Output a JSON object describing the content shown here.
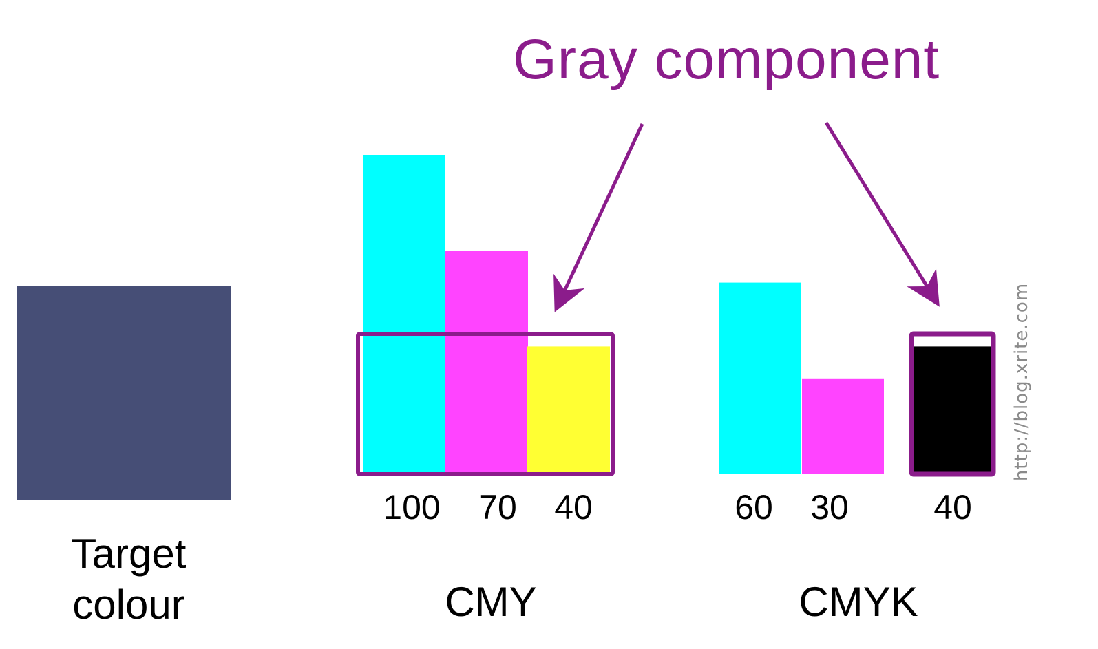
{
  "title": "Gray component",
  "target": {
    "label_line1": "Target",
    "label_line2": "colour",
    "color": "#464e76"
  },
  "colors": {
    "cyan": "#00ffff",
    "magenta": "#ff44ff",
    "yellow": "#ffff33",
    "black": "#000000",
    "highlight": "#8b1c8b"
  },
  "chart_data": [
    {
      "type": "bar",
      "name": "CMY",
      "categories": [
        "C",
        "M",
        "Y"
      ],
      "values": [
        100,
        70,
        40
      ],
      "value_labels": [
        "100",
        "70",
        "40"
      ],
      "highlighted_gray_component": 40,
      "ylim": [
        0,
        100
      ]
    },
    {
      "type": "bar",
      "name": "CMYK",
      "categories": [
        "C",
        "M",
        "K"
      ],
      "values": [
        60,
        30,
        40
      ],
      "value_labels": [
        "60",
        "30",
        "40"
      ],
      "highlighted_category": "K",
      "ylim": [
        0,
        100
      ]
    }
  ],
  "labels": {
    "cmy": "CMY",
    "cmyk": "CMYK"
  },
  "watermark": "http://blog.xrite.com"
}
